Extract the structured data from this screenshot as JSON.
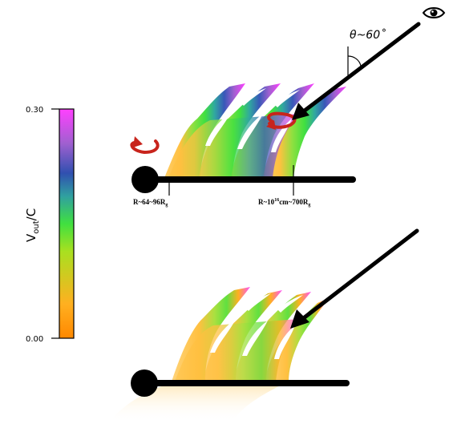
{
  "colorbar": {
    "label_main": "V",
    "label_sub": "out",
    "label_tail": "/C",
    "max_label": "0.30",
    "min_label": "0.00",
    "gradient": [
      "#ff8800",
      "#ffb020",
      "#a8e020",
      "#40e040",
      "#30a0a0",
      "#3050b0",
      "#a060d0",
      "#ff40ff"
    ]
  },
  "top_panel": {
    "angle_label": "θ~60˚",
    "inner_radius": {
      "prefix": "R~64~96R",
      "sub": "g"
    },
    "outer_radius": {
      "prefix": "R~10",
      "sup": "16",
      "mid": "cm~700R",
      "sub": "g"
    }
  },
  "colors": {
    "black": "#000000",
    "rotation_arrow": "#c8241c",
    "slow_wind": "#ffb020",
    "fast_wind": "#ff40ff"
  }
}
